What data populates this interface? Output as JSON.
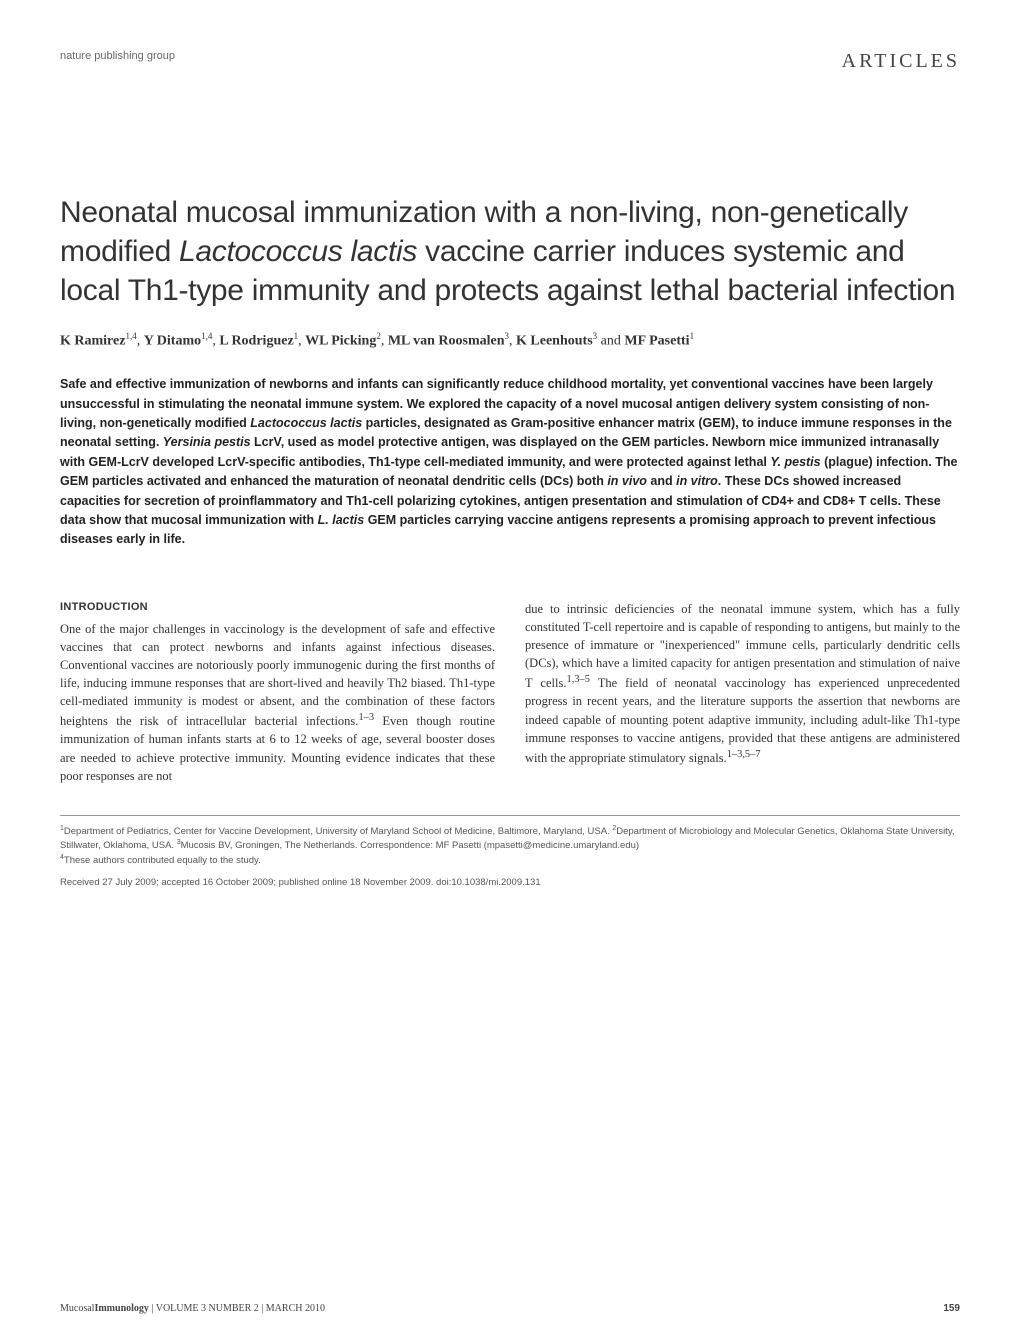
{
  "header": {
    "left": "nature publishing group",
    "right": "ARTICLES"
  },
  "title_part1": "Neonatal mucosal immunization with a non-living, non-genetically modified ",
  "title_italic1": "Lactococcus lactis",
  "title_part2": " vaccine carrier induces systemic and local Th1-type immunity and protects against lethal bacterial infection",
  "authors": {
    "a1_name": "K Ramirez",
    "a1_sup": "1,4",
    "a2_name": "Y Ditamo",
    "a2_sup": "1,4",
    "a3_name": "L Rodriguez",
    "a3_sup": "1",
    "a4_name": "WL Picking",
    "a4_sup": "2",
    "a5_name": "ML van Roosmalen",
    "a5_sup": "3",
    "a6_name": "K Leenhouts",
    "a6_sup": "3",
    "a7_name": "MF Pasetti",
    "a7_sup": "1"
  },
  "abstract": {
    "s1": "Safe and effective immunization of newborns and infants can significantly reduce childhood mortality, yet conventional vaccines have been largely unsuccessful in stimulating the neonatal immune system. We explored the capacity of a novel mucosal antigen delivery system consisting of non-living, non-genetically modified ",
    "it1": "Lactococcus lactis",
    "s2": " particles, designated as Gram-positive enhancer matrix (GEM), to induce immune responses in the neonatal setting. ",
    "it2": "Yersinia pestis",
    "s3": " LcrV, used as model protective antigen, was displayed on the GEM particles. Newborn mice immunized intranasally with GEM-LcrV developed LcrV-specific antibodies, Th1-type cell-mediated immunity, and were protected against lethal ",
    "it3": "Y. pestis",
    "s4": " (plague) infection. The GEM particles activated and enhanced the maturation of neonatal dendritic cells (DCs) both ",
    "it4": "in vivo",
    "s5": " and ",
    "it5": "in vitro",
    "s6": ". These DCs showed increased capacities for secretion of proinflammatory and Th1-cell polarizing cytokines, antigen presentation and stimulation of CD4+ and CD8+ T cells. These data show that mucosal immunization with ",
    "it6": "L. lactis",
    "s7": " GEM particles carrying vaccine antigens represents a promising approach to prevent infectious diseases early in life."
  },
  "intro_heading": "INTRODUCTION",
  "column1_text": "One of the major challenges in vaccinology is the development of safe and effective vaccines that can protect newborns and infants against infectious diseases. Conventional vaccines are notoriously poorly immunogenic during the first months of life, inducing immune responses that are short-lived and heavily Th2 biased. Th1-type cell-mediated immunity is modest or absent, and the combination of these factors heightens the risk of intracellular bacterial infections.",
  "column1_sup1": "1–3",
  "column1_text2": " Even though routine immunization of human infants starts at 6 to 12 weeks of age, several booster doses are needed to achieve protective immunity. Mounting evidence indicates that these poor responses are not",
  "column2_text": "due to intrinsic deficiencies of the neonatal immune system, which has a fully constituted T-cell repertoire and is capable of responding to antigens, but mainly to the presence of immature or \"inexperienced\" immune cells, particularly dendritic cells (DCs), which have a limited capacity for antigen presentation and stimulation of naive T cells.",
  "column2_sup1": "1,3–5",
  "column2_text2": " The field of neonatal vaccinology has experienced unprecedented progress in recent years, and the literature supports the assertion that newborns are indeed capable of mounting potent adaptive immunity, including adult-like Th1-type immune responses to vaccine antigens, provided that these antigens are administered with the appropriate stimulatory signals.",
  "column2_sup2": "1–3,5–7",
  "footnotes": {
    "affiliations_sup1": "1",
    "affiliations1": "Department of Pediatrics, Center for Vaccine Development, University of Maryland School of Medicine, Baltimore, Maryland, USA. ",
    "affiliations_sup2": "2",
    "affiliations2": "Department of Microbiology and Molecular Genetics, Oklahoma State University, Stillwater, Oklahoma, USA. ",
    "affiliations_sup3": "3",
    "affiliations3": "Mucosis BV, Groningen, The Netherlands. Correspondence: MF Pasetti (mpasetti@medicine.umaryland.edu)",
    "affiliations_sup4": "4",
    "affiliations4": "These authors contributed equally to the study."
  },
  "received": "Received 27 July 2009; accepted 16 October 2009; published online 18 November 2009. doi:10.1038/mi.2009.131",
  "footer": {
    "journal": "Mucosal",
    "journal_bold": "Immunology",
    "issue": " | VOLUME 3 NUMBER 2 | MARCH 2010",
    "page": "159"
  },
  "styling": {
    "body_text_color": "#333333",
    "heading_color": "#333333",
    "footnote_color": "#555555",
    "header_gray": "#666666",
    "background": "#ffffff",
    "title_fontsize": 30,
    "abstract_fontsize": 12.5,
    "body_fontsize": 12.5,
    "footnote_fontsize": 9.5
  }
}
